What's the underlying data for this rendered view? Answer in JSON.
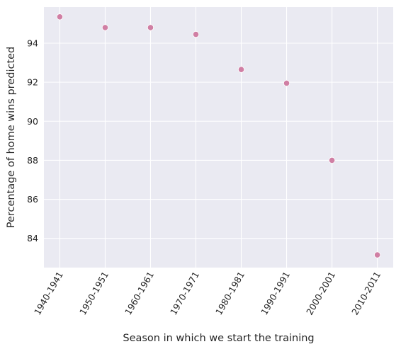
{
  "chart_data": {
    "type": "scatter",
    "categories": [
      "1940-1941",
      "1950-1951",
      "1960-1961",
      "1970-1971",
      "1980-1981",
      "1990-1991",
      "2000-2001",
      "2010-2011"
    ],
    "values": [
      95.35,
      94.8,
      94.8,
      94.45,
      92.65,
      91.95,
      88.0,
      83.15
    ],
    "xlabel": "Season in which we start the training",
    "ylabel": "Percentage of home wins predicted",
    "ylim": [
      82.5,
      95.85
    ],
    "yticks": [
      84,
      86,
      88,
      90,
      92,
      94
    ],
    "grid": true,
    "colors": {
      "background": "#EAEAF2",
      "grid": "#FFFFFF",
      "marker": "#D07FA4",
      "marker_edge": "#FFFFFF",
      "text": "#262626"
    }
  }
}
